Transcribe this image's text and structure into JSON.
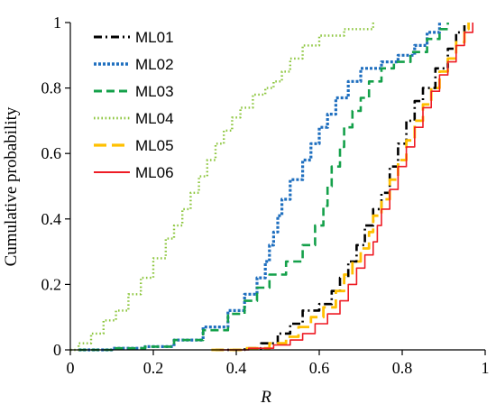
{
  "chart_data": {
    "type": "line",
    "title": "",
    "xlabel": "R",
    "ylabel": "Cumulative probability",
    "xlim": [
      0,
      1
    ],
    "ylim": [
      0,
      1
    ],
    "x_ticks": [
      "0",
      "0.2",
      "0.4",
      "0.6",
      "0.8",
      "1"
    ],
    "y_ticks": [
      "0",
      "0.2",
      "0.4",
      "0.6",
      "0.8",
      "1"
    ],
    "grid": false,
    "legend_position": "top-left",
    "series": [
      {
        "name": "ML01",
        "color": "#000000",
        "dash": "dash-dot",
        "stroke_width": 2.6,
        "points": [
          [
            0.35,
            0
          ],
          [
            0.42,
            0.005
          ],
          [
            0.46,
            0.02
          ],
          [
            0.5,
            0.05
          ],
          [
            0.53,
            0.08
          ],
          [
            0.56,
            0.12
          ],
          [
            0.6,
            0.14
          ],
          [
            0.63,
            0.18
          ],
          [
            0.65,
            0.22
          ],
          [
            0.67,
            0.27
          ],
          [
            0.69,
            0.32
          ],
          [
            0.71,
            0.38
          ],
          [
            0.73,
            0.43
          ],
          [
            0.75,
            0.48
          ],
          [
            0.77,
            0.56
          ],
          [
            0.79,
            0.63
          ],
          [
            0.81,
            0.7
          ],
          [
            0.83,
            0.76
          ],
          [
            0.85,
            0.8
          ],
          [
            0.88,
            0.86
          ],
          [
            0.91,
            0.92
          ],
          [
            0.93,
            0.97
          ],
          [
            0.95,
            1.0
          ]
        ]
      },
      {
        "name": "ML02",
        "color": "#1f6fbf",
        "dash": "dotted-heavy",
        "stroke_width": 3.2,
        "points": [
          [
            0.02,
            0
          ],
          [
            0.1,
            0.005
          ],
          [
            0.18,
            0.01
          ],
          [
            0.25,
            0.03
          ],
          [
            0.32,
            0.07
          ],
          [
            0.38,
            0.12
          ],
          [
            0.42,
            0.17
          ],
          [
            0.45,
            0.22
          ],
          [
            0.47,
            0.27
          ],
          [
            0.48,
            0.32
          ],
          [
            0.49,
            0.36
          ],
          [
            0.5,
            0.41
          ],
          [
            0.51,
            0.46
          ],
          [
            0.53,
            0.52
          ],
          [
            0.56,
            0.58
          ],
          [
            0.58,
            0.63
          ],
          [
            0.6,
            0.68
          ],
          [
            0.62,
            0.72
          ],
          [
            0.64,
            0.77
          ],
          [
            0.67,
            0.82
          ],
          [
            0.7,
            0.86
          ],
          [
            0.75,
            0.88
          ],
          [
            0.79,
            0.9
          ],
          [
            0.83,
            0.93
          ],
          [
            0.86,
            0.97
          ],
          [
            0.89,
            1.0
          ]
        ]
      },
      {
        "name": "ML03",
        "color": "#14a04a",
        "dash": "dashed",
        "stroke_width": 2.6,
        "points": [
          [
            0.02,
            0
          ],
          [
            0.1,
            0.005
          ],
          [
            0.18,
            0.01
          ],
          [
            0.25,
            0.03
          ],
          [
            0.32,
            0.06
          ],
          [
            0.38,
            0.11
          ],
          [
            0.42,
            0.15
          ],
          [
            0.45,
            0.19
          ],
          [
            0.48,
            0.23
          ],
          [
            0.52,
            0.27
          ],
          [
            0.56,
            0.32
          ],
          [
            0.59,
            0.38
          ],
          [
            0.61,
            0.44
          ],
          [
            0.62,
            0.5
          ],
          [
            0.63,
            0.56
          ],
          [
            0.65,
            0.62
          ],
          [
            0.66,
            0.68
          ],
          [
            0.68,
            0.73
          ],
          [
            0.7,
            0.77
          ],
          [
            0.72,
            0.82
          ],
          [
            0.75,
            0.86
          ],
          [
            0.78,
            0.88
          ],
          [
            0.82,
            0.91
          ],
          [
            0.86,
            0.95
          ],
          [
            0.89,
            0.98
          ],
          [
            0.91,
            1.0
          ]
        ]
      },
      {
        "name": "ML04",
        "color": "#8dc63f",
        "dash": "dotted",
        "stroke_width": 2.4,
        "points": [
          [
            0.0,
            0
          ],
          [
            0.02,
            0.02
          ],
          [
            0.05,
            0.05
          ],
          [
            0.08,
            0.09
          ],
          [
            0.11,
            0.12
          ],
          [
            0.14,
            0.17
          ],
          [
            0.17,
            0.22
          ],
          [
            0.2,
            0.28
          ],
          [
            0.23,
            0.34
          ],
          [
            0.25,
            0.38
          ],
          [
            0.27,
            0.43
          ],
          [
            0.29,
            0.48
          ],
          [
            0.31,
            0.53
          ],
          [
            0.33,
            0.58
          ],
          [
            0.35,
            0.63
          ],
          [
            0.37,
            0.67
          ],
          [
            0.39,
            0.71
          ],
          [
            0.41,
            0.74
          ],
          [
            0.44,
            0.78
          ],
          [
            0.47,
            0.8
          ],
          [
            0.49,
            0.82
          ],
          [
            0.51,
            0.85
          ],
          [
            0.53,
            0.89
          ],
          [
            0.56,
            0.93
          ],
          [
            0.6,
            0.96
          ],
          [
            0.66,
            0.98
          ],
          [
            0.73,
            1.0
          ]
        ]
      },
      {
        "name": "ML05",
        "color": "#ffc000",
        "dash": "long-dash",
        "stroke_width": 2.8,
        "points": [
          [
            0.34,
            0
          ],
          [
            0.42,
            0.005
          ],
          [
            0.48,
            0.02
          ],
          [
            0.52,
            0.04
          ],
          [
            0.55,
            0.07
          ],
          [
            0.58,
            0.1
          ],
          [
            0.61,
            0.13
          ],
          [
            0.64,
            0.18
          ],
          [
            0.66,
            0.23
          ],
          [
            0.68,
            0.27
          ],
          [
            0.7,
            0.31
          ],
          [
            0.72,
            0.36
          ],
          [
            0.73,
            0.41
          ],
          [
            0.75,
            0.46
          ],
          [
            0.77,
            0.52
          ],
          [
            0.79,
            0.58
          ],
          [
            0.81,
            0.64
          ],
          [
            0.83,
            0.7
          ],
          [
            0.85,
            0.75
          ],
          [
            0.87,
            0.8
          ],
          [
            0.89,
            0.85
          ],
          [
            0.91,
            0.89
          ],
          [
            0.93,
            0.94
          ],
          [
            0.95,
            0.98
          ],
          [
            0.96,
            1.0
          ]
        ]
      },
      {
        "name": "ML06",
        "color": "#ee1c25",
        "dash": "solid",
        "stroke_width": 1.6,
        "points": [
          [
            0.36,
            0
          ],
          [
            0.43,
            0.005
          ],
          [
            0.49,
            0.015
          ],
          [
            0.53,
            0.03
          ],
          [
            0.56,
            0.05
          ],
          [
            0.59,
            0.08
          ],
          [
            0.62,
            0.11
          ],
          [
            0.65,
            0.15
          ],
          [
            0.67,
            0.2
          ],
          [
            0.69,
            0.25
          ],
          [
            0.71,
            0.29
          ],
          [
            0.73,
            0.33
          ],
          [
            0.74,
            0.38
          ],
          [
            0.75,
            0.43
          ],
          [
            0.77,
            0.49
          ],
          [
            0.79,
            0.56
          ],
          [
            0.81,
            0.62
          ],
          [
            0.83,
            0.68
          ],
          [
            0.85,
            0.74
          ],
          [
            0.87,
            0.79
          ],
          [
            0.89,
            0.84
          ],
          [
            0.91,
            0.88
          ],
          [
            0.93,
            0.93
          ],
          [
            0.95,
            0.97
          ],
          [
            0.97,
            1.0
          ]
        ]
      }
    ]
  }
}
